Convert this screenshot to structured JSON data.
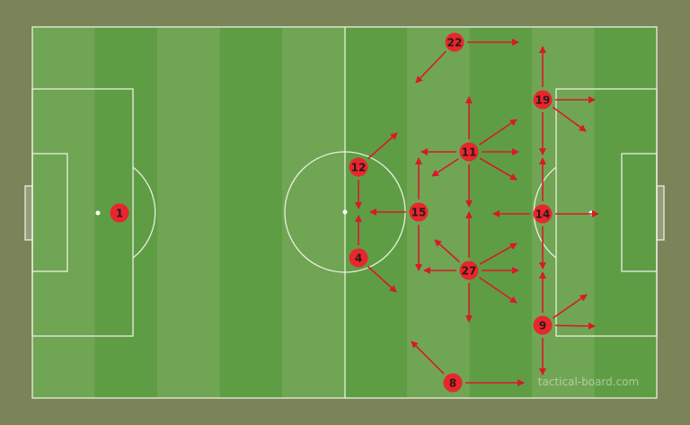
{
  "board": {
    "watermark": "tactical-board.com",
    "colors": {
      "background": "#7a8458",
      "stripe_light": "#70a553",
      "stripe_dark": "#5f9d44",
      "lines": "#e8f0e0",
      "player": "#e8262e",
      "arrow": "#d8192a"
    }
  },
  "players": [
    {
      "number": "1"
    },
    {
      "number": "22"
    },
    {
      "number": "19"
    },
    {
      "number": "11"
    },
    {
      "number": "12"
    },
    {
      "number": "15"
    },
    {
      "number": "14"
    },
    {
      "number": "4"
    },
    {
      "number": "27"
    },
    {
      "number": "9"
    },
    {
      "number": "8"
    }
  ]
}
